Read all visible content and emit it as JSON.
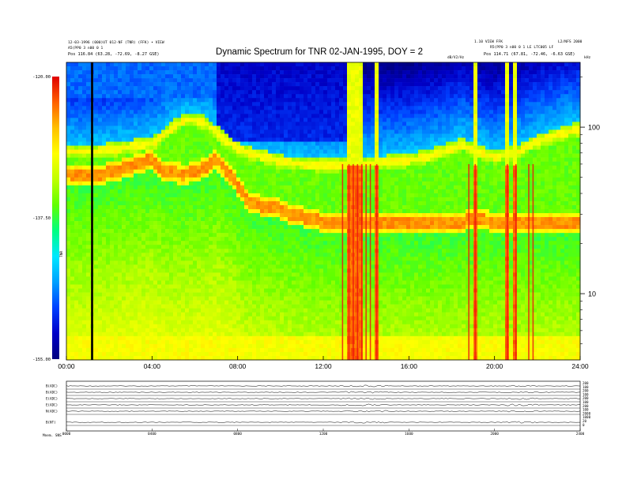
{
  "header": {
    "title": "Dynamic Spectrum for TNR 02-JAN-1995, DOY = 2",
    "left_line1": "12-03-1996 (000)UT 012-NF (TNR) (FFK) • VIEW",
    "left_line2": "A5(PP0 3 n00 0 1",
    "left_pos": "Pos   116.84 (63.28, -72.69, -8.27 GSE)",
    "right_line1": "1.10 VIEW FFK",
    "right_line2": "L2/NFS 2000",
    "right_line3": "R5(PP0 3 n00 0 1 LE LTC005 LF",
    "right_pos": "Pos   114.71 (67.81, -72.46, -6.63 GSE)",
    "mid_small": "dB/V2/Hz",
    "freq_unit": "kHz"
  },
  "colorbar": {
    "label": "TNR",
    "tick_labels": [
      "-120.00",
      "-137.50",
      "-155.00"
    ],
    "colors": [
      "#000080",
      "#0000c8",
      "#0040ff",
      "#00a0ff",
      "#00e8ff",
      "#00ff80",
      "#60ff00",
      "#c0ff00",
      "#ffff00",
      "#ffc000",
      "#ff6000",
      "#e00000"
    ]
  },
  "chart_data": {
    "type": "heatmap",
    "title": "Dynamic Spectrum for TNR 02-JAN-1995, DOY = 2",
    "x_tick_labels": [
      "00:00",
      "04:00",
      "08:00",
      "12:00",
      "16:00",
      "20:00",
      "24:00"
    ],
    "x_range_hours": [
      0,
      24
    ],
    "y_scale": "log",
    "y_unit": "kHz",
    "y_range": [
      4,
      245
    ],
    "y_tick_labels": [
      "100",
      "10"
    ],
    "y_tick_values": [
      100,
      10
    ],
    "color_range_db": [
      -155.0,
      -120.0
    ],
    "features": [
      {
        "name": "plasma line (lower)",
        "hours": [
          0,
          0.25,
          1.0,
          2.0,
          3.0,
          4.0,
          4.5,
          5.5,
          6.5,
          7.0,
          7.5,
          8.0,
          8.5,
          9.0,
          9.5,
          10.0,
          10.5,
          11.0,
          11.5,
          12.0,
          13.0,
          14.0,
          16.0,
          18.0,
          19.0,
          20.0,
          21.0,
          22.0,
          24.0
        ],
        "khz": [
          53,
          52,
          51,
          53,
          58,
          64,
          55,
          52,
          57,
          64,
          55,
          45,
          36,
          34,
          33,
          32,
          30,
          29,
          28,
          27,
          27,
          26,
          26,
          26,
          28,
          27,
          27,
          27,
          27
        ]
      },
      {
        "name": "plasma line (upper)",
        "hours": [
          0,
          1.0,
          2.0,
          3.0,
          4.0,
          4.5,
          5.0,
          5.5,
          6.0,
          6.5,
          7.0,
          7.5,
          8.0,
          9.0,
          10.0,
          11.0,
          12.0,
          14.0,
          16.0,
          17.0,
          18.0,
          18.5,
          19.0,
          20.0,
          21.0,
          22.0,
          24.0
        ],
        "khz": [
          72,
          71,
          73,
          76,
          80,
          88,
          100,
          110,
          110,
          106,
          93,
          82,
          74,
          67,
          62,
          60,
          59,
          60,
          63,
          67,
          74,
          79,
          72,
          66,
          70,
          82,
          98
        ]
      },
      {
        "name": "data gap",
        "hours": [
          1.15,
          1.25
        ]
      },
      {
        "name": "red bursts",
        "hours": [
          12.9,
          13.2,
          13.4,
          13.6,
          13.8,
          14.0,
          14.2,
          14.5,
          18.8,
          19.1,
          20.6,
          21.0,
          21.6,
          21.8
        ]
      },
      {
        "name": "strong blue region",
        "hours": [
          7.0,
          13.5
        ],
        "khz": [
          80,
          240
        ]
      }
    ]
  },
  "bottom_panel": {
    "row_labels": [
      "B(ADC)",
      "B(ADC)",
      "E(ADC)",
      "E(ADC)",
      "N(ADC)",
      "B(NT)"
    ],
    "right_labels": [
      "200",
      "100",
      "200",
      "100",
      "200",
      "100",
      "200",
      "100",
      "2000",
      "1000",
      "20",
      "0"
    ],
    "time_labels": [
      "0000",
      "0400",
      "0800",
      "1200",
      "1600",
      "2000",
      "2400"
    ],
    "footer": "Mnem.  SNS"
  }
}
